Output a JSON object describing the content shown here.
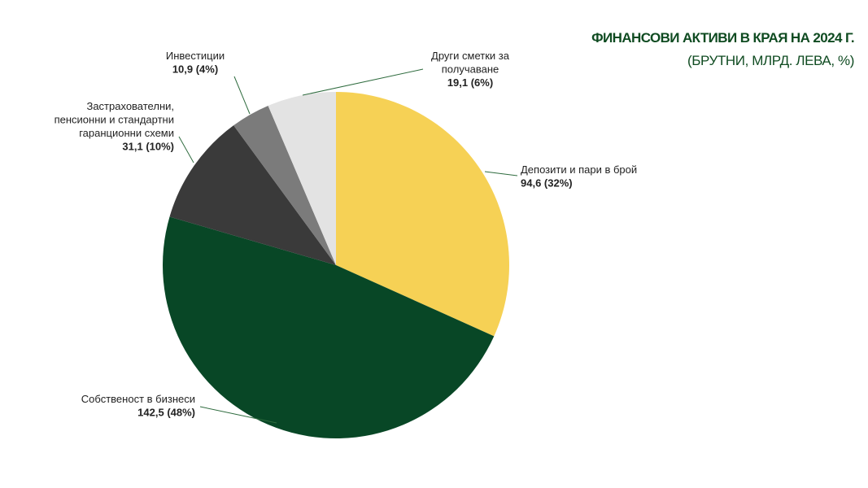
{
  "chart_data": {
    "type": "pie",
    "title": "ФИНАНСОВИ АКТИВИ В КРАЯ НА 2024 Г.",
    "subtitle": "(БРУТНИ, МЛРД. ЛЕВА, %)",
    "categories": [
      "Депозити и пари в брой",
      "Собственост в бизнеси",
      "Застрахователни,\nпенсионни и стандартни\nгаранционни схеми",
      "Инвестиции",
      "Други сметки за\nполучаване"
    ],
    "values": [
      94.6,
      142.5,
      31.1,
      10.9,
      19.1
    ],
    "value_labels": [
      "94,6 (32%)",
      "142,5 (48%)",
      "31,1 (10%)",
      "10,9 (4%)",
      "19,1 (6%)"
    ],
    "colors": [
      "#f6d155",
      "#084726",
      "#3a3a3a",
      "#7b7b7b",
      "#e3e3e3"
    ]
  }
}
